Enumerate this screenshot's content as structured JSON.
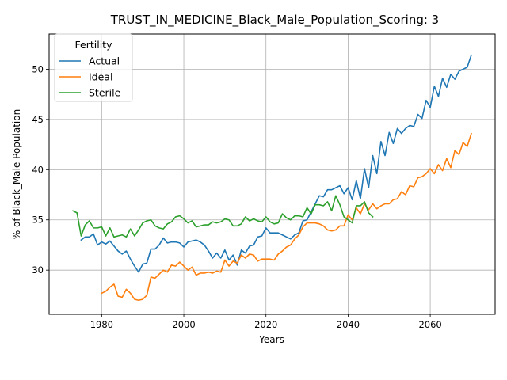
{
  "chart_data": {
    "type": "line",
    "title": "TRUST_IN_MEDICINE_Black_Male_Population_Scoring: 3",
    "xlabel": "Years",
    "ylabel": "% of Black_Male Population",
    "xlim": [
      1967.2,
      2075.8
    ],
    "ylim": [
      25.6,
      53.5
    ],
    "x_ticks": [
      1980,
      2000,
      2020,
      2040,
      2060
    ],
    "y_ticks": [
      30,
      35,
      40,
      45,
      50
    ],
    "grid": true,
    "legend": {
      "title": "Fertility",
      "placement": "top-left"
    },
    "series": [
      {
        "name": "Actual",
        "color": "#1f77b4",
        "points": [
          [
            1975,
            33.0
          ],
          [
            1976,
            33.3
          ],
          [
            1977,
            33.3
          ],
          [
            1978,
            33.6
          ],
          [
            1979,
            32.5
          ],
          [
            1980,
            32.8
          ],
          [
            1981,
            32.6
          ],
          [
            1982,
            32.9
          ],
          [
            1983,
            32.4
          ],
          [
            1984,
            31.9
          ],
          [
            1985,
            31.6
          ],
          [
            1986,
            31.9
          ],
          [
            1987,
            31.1
          ],
          [
            1988,
            30.4
          ],
          [
            1989,
            29.8
          ],
          [
            1990,
            30.6
          ],
          [
            1991,
            30.7
          ],
          [
            1992,
            32.1
          ],
          [
            1993,
            32.1
          ],
          [
            1994,
            32.5
          ],
          [
            1995,
            33.2
          ],
          [
            1996,
            32.7
          ],
          [
            1997,
            32.8
          ],
          [
            1998,
            32.8
          ],
          [
            1999,
            32.7
          ],
          [
            2000,
            32.3
          ],
          [
            2001,
            32.8
          ],
          [
            2002,
            32.9
          ],
          [
            2003,
            33.0
          ],
          [
            2004,
            32.8
          ],
          [
            2005,
            32.5
          ],
          [
            2006,
            31.9
          ],
          [
            2007,
            31.2
          ],
          [
            2008,
            31.7
          ],
          [
            2009,
            31.2
          ],
          [
            2010,
            32.0
          ],
          [
            2011,
            31.0
          ],
          [
            2012,
            31.5
          ],
          [
            2013,
            30.5
          ],
          [
            2014,
            32.0
          ],
          [
            2015,
            31.7
          ],
          [
            2016,
            32.4
          ],
          [
            2017,
            32.5
          ],
          [
            2018,
            33.3
          ],
          [
            2019,
            33.4
          ],
          [
            2020,
            34.2
          ],
          [
            2021,
            33.7
          ],
          [
            2022,
            33.7
          ],
          [
            2023,
            33.7
          ],
          [
            2024,
            33.5
          ],
          [
            2025,
            33.3
          ],
          [
            2026,
            33.1
          ],
          [
            2027,
            33.5
          ],
          [
            2028,
            33.7
          ],
          [
            2029,
            34.9
          ],
          [
            2030,
            35.0
          ],
          [
            2031,
            35.8
          ],
          [
            2032,
            36.6
          ],
          [
            2033,
            37.4
          ],
          [
            2034,
            37.3
          ],
          [
            2035,
            38.0
          ],
          [
            2036,
            38.0
          ],
          [
            2037,
            38.2
          ],
          [
            2038,
            38.4
          ],
          [
            2039,
            37.6
          ],
          [
            2040,
            38.2
          ],
          [
            2041,
            37.0
          ],
          [
            2042,
            38.9
          ],
          [
            2043,
            37.1
          ],
          [
            2044,
            40.1
          ],
          [
            2045,
            38.2
          ],
          [
            2046,
            41.4
          ],
          [
            2047,
            39.6
          ],
          [
            2048,
            42.8
          ],
          [
            2049,
            41.4
          ],
          [
            2050,
            43.7
          ],
          [
            2051,
            42.6
          ],
          [
            2052,
            44.1
          ],
          [
            2053,
            43.6
          ],
          [
            2054,
            44.1
          ],
          [
            2055,
            44.4
          ],
          [
            2056,
            44.3
          ],
          [
            2057,
            45.5
          ],
          [
            2058,
            45.1
          ],
          [
            2059,
            46.9
          ],
          [
            2060,
            46.2
          ],
          [
            2061,
            48.3
          ],
          [
            2062,
            47.3
          ],
          [
            2063,
            49.1
          ],
          [
            2064,
            48.2
          ],
          [
            2065,
            49.5
          ],
          [
            2066,
            49.0
          ],
          [
            2067,
            49.8
          ],
          [
            2068,
            50.0
          ],
          [
            2069,
            50.2
          ],
          [
            2070,
            51.4
          ]
        ]
      },
      {
        "name": "Ideal",
        "color": "#ff7f0e",
        "points": [
          [
            1980,
            27.7
          ],
          [
            1981,
            27.9
          ],
          [
            1982,
            28.3
          ],
          [
            1983,
            28.6
          ],
          [
            1984,
            27.4
          ],
          [
            1985,
            27.3
          ],
          [
            1986,
            28.1
          ],
          [
            1987,
            27.7
          ],
          [
            1988,
            27.1
          ],
          [
            1989,
            27.0
          ],
          [
            1990,
            27.1
          ],
          [
            1991,
            27.5
          ],
          [
            1992,
            29.3
          ],
          [
            1993,
            29.2
          ],
          [
            1994,
            29.6
          ],
          [
            1995,
            30.0
          ],
          [
            1996,
            29.8
          ],
          [
            1997,
            30.5
          ],
          [
            1998,
            30.4
          ],
          [
            1999,
            30.8
          ],
          [
            2000,
            30.4
          ],
          [
            2001,
            30.0
          ],
          [
            2002,
            30.3
          ],
          [
            2003,
            29.5
          ],
          [
            2004,
            29.7
          ],
          [
            2005,
            29.7
          ],
          [
            2006,
            29.8
          ],
          [
            2007,
            29.7
          ],
          [
            2008,
            29.9
          ],
          [
            2009,
            29.8
          ],
          [
            2010,
            31.0
          ],
          [
            2011,
            30.4
          ],
          [
            2012,
            30.9
          ],
          [
            2013,
            30.7
          ],
          [
            2014,
            31.5
          ],
          [
            2015,
            31.2
          ],
          [
            2016,
            31.6
          ],
          [
            2017,
            31.5
          ],
          [
            2018,
            30.9
          ],
          [
            2019,
            31.1
          ],
          [
            2020,
            31.1
          ],
          [
            2021,
            31.1
          ],
          [
            2022,
            31.0
          ],
          [
            2023,
            31.6
          ],
          [
            2024,
            31.9
          ],
          [
            2025,
            32.3
          ],
          [
            2026,
            32.5
          ],
          [
            2027,
            33.1
          ],
          [
            2028,
            33.5
          ],
          [
            2029,
            34.3
          ],
          [
            2030,
            34.7
          ],
          [
            2031,
            34.7
          ],
          [
            2032,
            34.7
          ],
          [
            2033,
            34.6
          ],
          [
            2034,
            34.4
          ],
          [
            2035,
            34.0
          ],
          [
            2036,
            33.9
          ],
          [
            2037,
            34.0
          ],
          [
            2038,
            34.4
          ],
          [
            2039,
            34.4
          ],
          [
            2040,
            35.5
          ],
          [
            2041,
            35.0
          ],
          [
            2042,
            36.2
          ],
          [
            2043,
            35.6
          ],
          [
            2044,
            36.6
          ],
          [
            2045,
            36.0
          ],
          [
            2046,
            36.6
          ],
          [
            2047,
            36.1
          ],
          [
            2048,
            36.4
          ],
          [
            2049,
            36.6
          ],
          [
            2050,
            36.6
          ],
          [
            2051,
            37.0
          ],
          [
            2052,
            37.1
          ],
          [
            2053,
            37.8
          ],
          [
            2054,
            37.5
          ],
          [
            2055,
            38.4
          ],
          [
            2056,
            38.3
          ],
          [
            2057,
            39.2
          ],
          [
            2058,
            39.3
          ],
          [
            2059,
            39.6
          ],
          [
            2060,
            40.1
          ],
          [
            2061,
            39.6
          ],
          [
            2062,
            40.5
          ],
          [
            2063,
            39.9
          ],
          [
            2064,
            41.1
          ],
          [
            2065,
            40.2
          ],
          [
            2066,
            41.9
          ],
          [
            2067,
            41.5
          ],
          [
            2068,
            42.7
          ],
          [
            2069,
            42.3
          ],
          [
            2070,
            43.6
          ]
        ]
      },
      {
        "name": "Sterile",
        "color": "#2ca02c",
        "points": [
          [
            1973,
            35.9
          ],
          [
            1974,
            35.7
          ],
          [
            1975,
            33.4
          ],
          [
            1976,
            34.5
          ],
          [
            1977,
            34.9
          ],
          [
            1978,
            34.2
          ],
          [
            1979,
            34.2
          ],
          [
            1980,
            34.3
          ],
          [
            1981,
            33.4
          ],
          [
            1982,
            34.2
          ],
          [
            1983,
            33.3
          ],
          [
            1984,
            33.4
          ],
          [
            1985,
            33.5
          ],
          [
            1986,
            33.3
          ],
          [
            1987,
            34.1
          ],
          [
            1988,
            33.4
          ],
          [
            1989,
            34.0
          ],
          [
            1990,
            34.7
          ],
          [
            1991,
            34.9
          ],
          [
            1992,
            35.0
          ],
          [
            1993,
            34.4
          ],
          [
            1994,
            34.2
          ],
          [
            1995,
            34.1
          ],
          [
            1996,
            34.6
          ],
          [
            1997,
            34.8
          ],
          [
            1998,
            35.3
          ],
          [
            1999,
            35.4
          ],
          [
            2000,
            35.1
          ],
          [
            2001,
            34.7
          ],
          [
            2002,
            34.9
          ],
          [
            2003,
            34.3
          ],
          [
            2004,
            34.4
          ],
          [
            2005,
            34.5
          ],
          [
            2006,
            34.5
          ],
          [
            2007,
            34.8
          ],
          [
            2008,
            34.7
          ],
          [
            2009,
            34.8
          ],
          [
            2010,
            35.1
          ],
          [
            2011,
            35.0
          ],
          [
            2012,
            34.4
          ],
          [
            2013,
            34.4
          ],
          [
            2014,
            34.6
          ],
          [
            2015,
            35.3
          ],
          [
            2016,
            34.9
          ],
          [
            2017,
            35.1
          ],
          [
            2018,
            34.9
          ],
          [
            2019,
            34.8
          ],
          [
            2020,
            35.3
          ],
          [
            2021,
            34.8
          ],
          [
            2022,
            34.6
          ],
          [
            2023,
            34.7
          ],
          [
            2024,
            35.6
          ],
          [
            2025,
            35.2
          ],
          [
            2026,
            35.0
          ],
          [
            2027,
            35.4
          ],
          [
            2028,
            35.4
          ],
          [
            2029,
            35.3
          ],
          [
            2030,
            36.2
          ],
          [
            2031,
            35.6
          ],
          [
            2032,
            36.5
          ],
          [
            2033,
            36.5
          ],
          [
            2034,
            36.4
          ],
          [
            2035,
            36.8
          ],
          [
            2036,
            35.9
          ],
          [
            2037,
            37.4
          ],
          [
            2038,
            36.5
          ],
          [
            2039,
            35.3
          ],
          [
            2040,
            35.0
          ],
          [
            2041,
            34.7
          ],
          [
            2042,
            36.4
          ],
          [
            2043,
            36.4
          ],
          [
            2044,
            36.8
          ],
          [
            2045,
            35.7
          ],
          [
            2046,
            35.3
          ]
        ]
      }
    ]
  }
}
